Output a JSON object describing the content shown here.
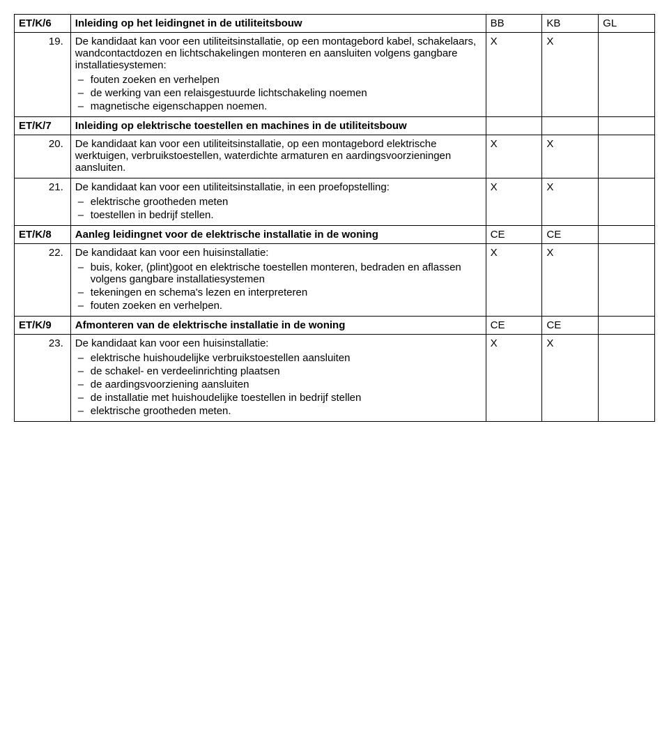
{
  "headers": {
    "bb": "BB",
    "kb": "KB",
    "gl": "GL"
  },
  "rows": [
    {
      "type": "section",
      "code": "ET/K/6",
      "title": "Inleiding op het leidingnet in de utiliteitsbouw",
      "bb": "",
      "kb": "",
      "gl": "",
      "inHeaderRow": true
    },
    {
      "type": "item",
      "num": "19.",
      "text": "De kandidaat kan voor een utiliteitsinstallatie, op een montagebord kabel, schakelaars, wandcontactdozen en lichtschakelingen monteren en aansluiten volgens gangbare installatiesystemen:",
      "bullets": [
        "fouten zoeken en verhelpen",
        "de werking van een relaisgestuurde lichtschakeling noemen",
        "magnetische eigenschappen noemen."
      ],
      "bb": "X",
      "kb": "X",
      "gl": ""
    },
    {
      "type": "section",
      "code": "ET/K/7",
      "title": "Inleiding op elektrische toestellen en machines in de utiliteitsbouw",
      "bb": "",
      "kb": "",
      "gl": ""
    },
    {
      "type": "item",
      "num": "20.",
      "text": "De kandidaat kan voor een utiliteitsinstallatie, op een montagebord elektrische werktuigen, verbruikstoestellen, waterdichte armaturen en aardingsvoorzieningen aansluiten.",
      "bullets": [],
      "bb": "X",
      "kb": "X",
      "gl": ""
    },
    {
      "type": "item",
      "num": "21.",
      "text": "De kandidaat kan voor een utiliteitsinstallatie, in een proefopstelling:",
      "bullets": [
        "elektrische grootheden meten",
        "toestellen in bedrijf stellen."
      ],
      "bb": "X",
      "kb": "X",
      "gl": ""
    },
    {
      "type": "section",
      "code": "ET/K/8",
      "title": "Aanleg leidingnet voor de elektrische installatie in de woning",
      "bb": "CE",
      "kb": "CE",
      "gl": ""
    },
    {
      "type": "item",
      "num": "22.",
      "text": "De kandidaat kan voor een huisinstallatie:",
      "bullets": [
        "buis, koker, (plint)goot en elektrische toestellen monteren, bedraden en aflassen volgens gangbare installatiesystemen",
        "tekeningen en schema's lezen en interpreteren",
        "fouten zoeken en verhelpen."
      ],
      "bb": "X",
      "kb": "X",
      "gl": ""
    },
    {
      "type": "section",
      "code": "ET/K/9",
      "title": "Afmonteren van de elektrische installatie in de woning",
      "bb": "CE",
      "kb": "CE",
      "gl": ""
    },
    {
      "type": "item",
      "num": "23.",
      "text": "De kandidaat kan voor een huisinstallatie:",
      "bullets": [
        "elektrische huishoudelijke verbruikstoestellen aansluiten",
        "de schakel- en verdeelinrichting plaatsen",
        "de aardingsvoorziening aansluiten",
        "de installatie met huishoudelijke toestellen in bedrijf stellen",
        "elektrische grootheden meten."
      ],
      "bb": "X",
      "kb": "X",
      "gl": ""
    }
  ]
}
